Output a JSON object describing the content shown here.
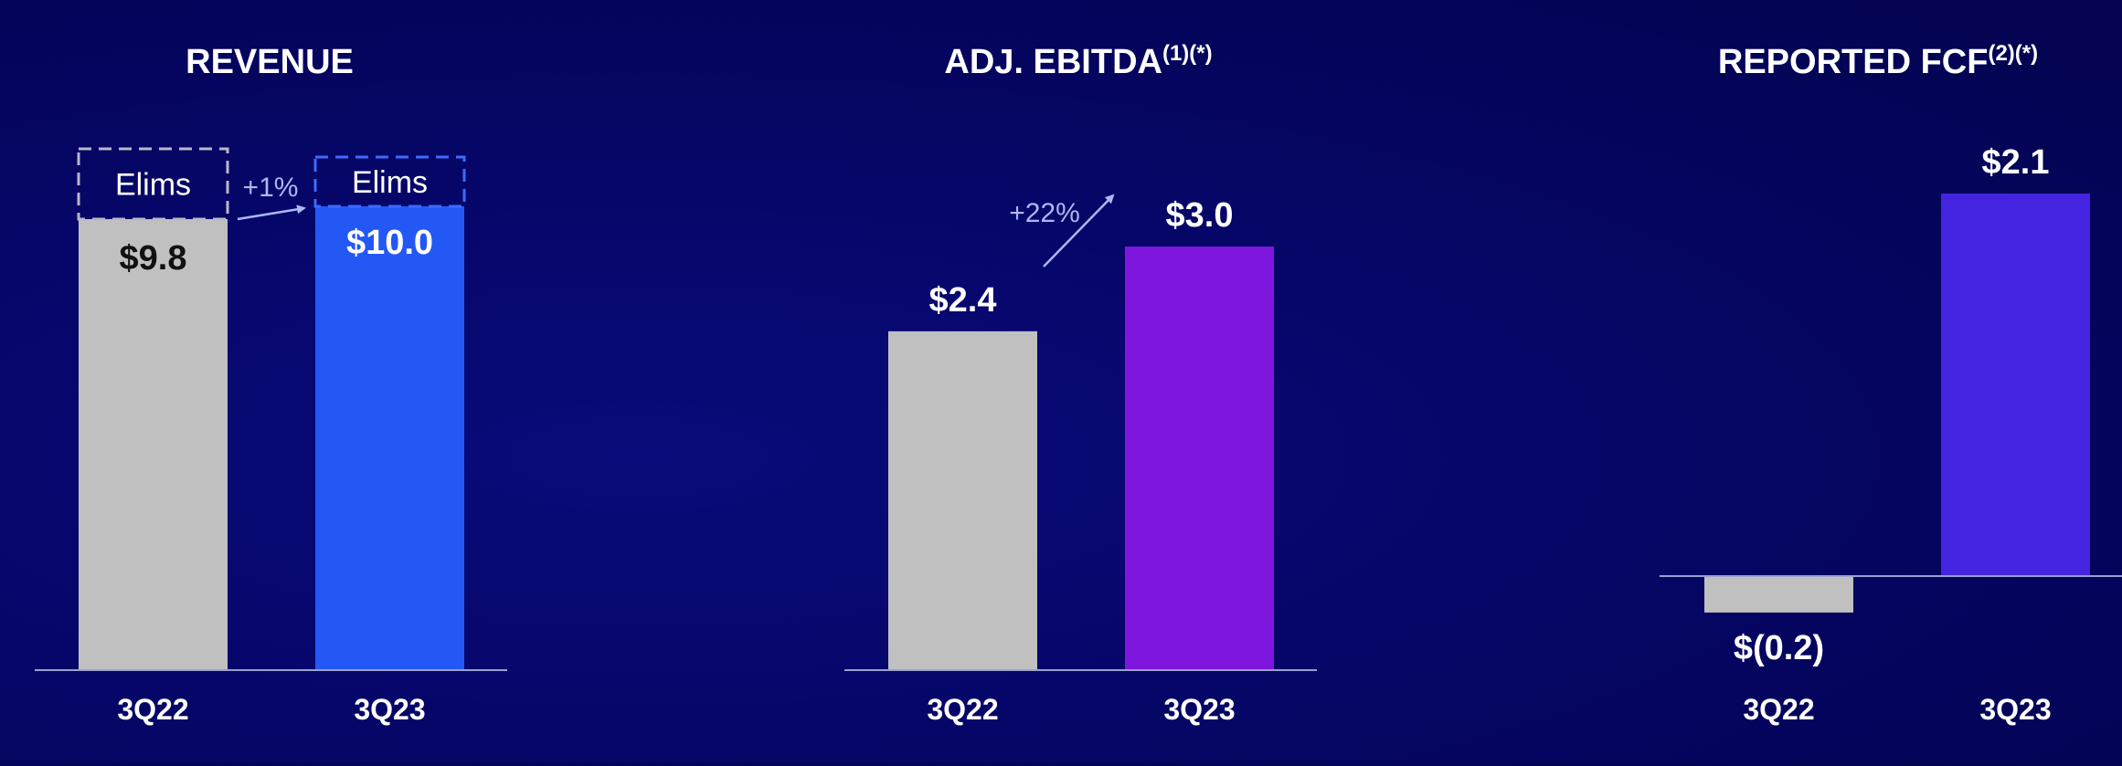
{
  "colors": {
    "background": "#05056e",
    "bar_prior": "#c0c0c0",
    "bar_revenue": "#2358f5",
    "bar_ebitda": "#7f16dd",
    "bar_fcf": "#4424e0",
    "text": "#ffffff",
    "annotation": "#aab8f0",
    "axis": "#9aa0d0",
    "elims_prior_border": "#b8b8c8",
    "elims_current_border": "#3a6cff"
  },
  "chart_data": [
    {
      "type": "bar",
      "title": "REVENUE",
      "title_superscript": "",
      "categories": [
        "3Q22",
        "3Q23"
      ],
      "values": [
        9.8,
        10.0
      ],
      "value_labels": [
        "$9.8",
        "$10.0"
      ],
      "stack_segments": [
        "Elims",
        "Elims"
      ],
      "growth_label": "+1%",
      "ylim": [
        0,
        10.6
      ]
    },
    {
      "type": "bar",
      "title": "ADJ. EBITDA",
      "title_superscript": "(1)(*)",
      "categories": [
        "3Q22",
        "3Q23"
      ],
      "values": [
        2.4,
        3.0
      ],
      "value_labels": [
        "$2.4",
        "$3.0"
      ],
      "growth_label": "+22%",
      "ylim": [
        0,
        3.55
      ]
    },
    {
      "type": "bar",
      "title": "REPORTED FCF",
      "title_superscript": "(2)(*)",
      "categories": [
        "3Q22",
        "3Q23"
      ],
      "values": [
        -0.2,
        2.1
      ],
      "value_labels": [
        "$(0.2)",
        "$2.1"
      ],
      "ylim": [
        -0.5,
        2.35
      ]
    }
  ]
}
